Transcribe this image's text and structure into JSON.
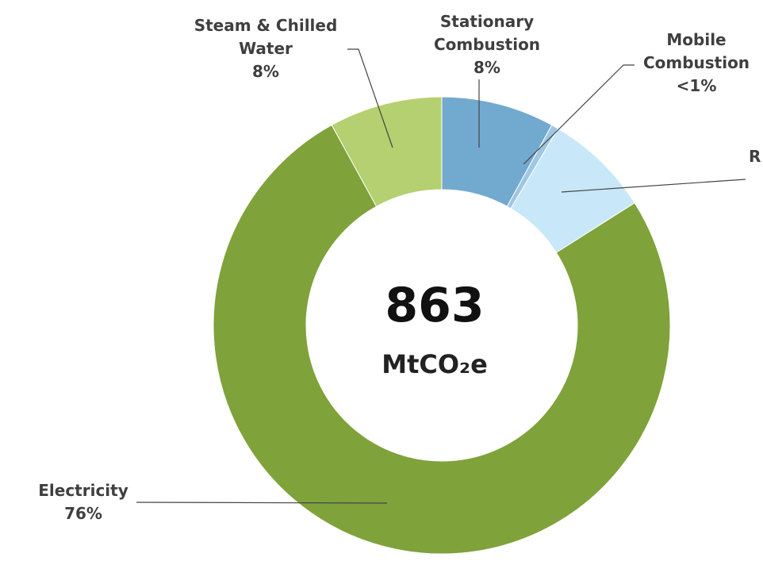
{
  "chart_data": {
    "type": "donut",
    "categories": [
      "Stationary Combustion",
      "Mobile Combustion",
      "R",
      "Electricity",
      "Steam & Chilled Water"
    ],
    "values": [
      8,
      0.5,
      7.5,
      76,
      8
    ],
    "value_labels": [
      "8%",
      "<1%",
      null,
      "76%",
      "8%"
    ],
    "colors": [
      "#72a9cf",
      "#9ec7e4",
      "#c8e7f9",
      "#7fa23a",
      "#b4d070"
    ],
    "total": 863,
    "total_unit": "MtCO₂e"
  }
}
